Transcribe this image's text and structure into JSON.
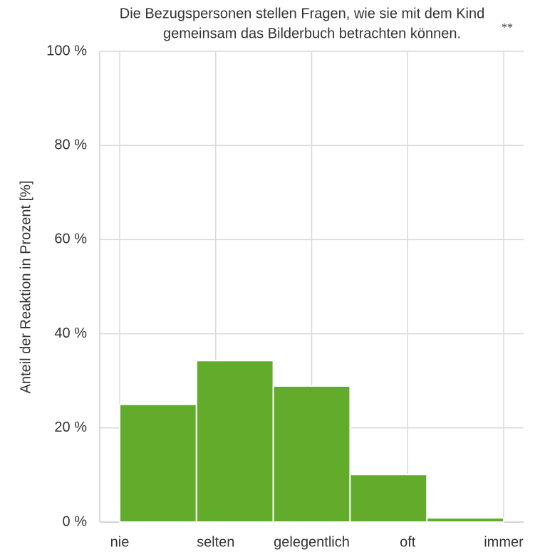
{
  "chart_data": {
    "type": "bar",
    "title_lines": [
      "Die Bezugspersonen stellen Fragen, wie sie mit dem Kind",
      "gemeinsam das Bilderbuch betrachten können."
    ],
    "annotation": "**",
    "y_label": "Anteil der Reaktion in Prozent [%]",
    "categories": [
      "nie",
      "selten",
      "gelegentlich",
      "oft",
      "immer"
    ],
    "values": [
      25,
      34.3,
      28.9,
      10.1,
      0.9
    ],
    "color": "#63ab2a",
    "ylim": [
      0,
      100
    ],
    "yticks": [
      {
        "value": 0,
        "label": "0 %"
      },
      {
        "value": 20,
        "label": "20 %"
      },
      {
        "value": 40,
        "label": "40 %"
      },
      {
        "value": 60,
        "label": "60 %"
      },
      {
        "value": 80,
        "label": "80 %"
      },
      {
        "value": 100,
        "label": "100 %"
      }
    ],
    "grid": true
  }
}
